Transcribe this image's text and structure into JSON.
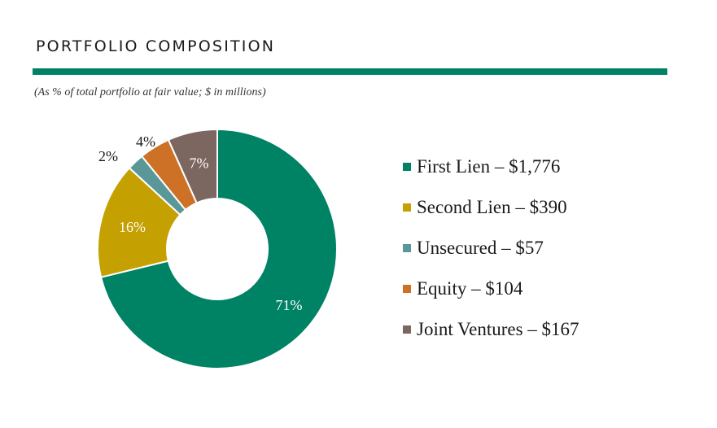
{
  "header": {
    "title": "PORTFOLIO COMPOSITION",
    "subtitle": "(As % of total portfolio at fair value; $ in millions)",
    "rule_color": "#008264"
  },
  "chart_data": {
    "type": "pie",
    "style": "donut",
    "legend_position": "right",
    "series": [
      {
        "name": "First Lien – $1,776",
        "value": 1776,
        "percent_label": "71%",
        "color": "#008264",
        "label_color": "#ffffff",
        "label_position": "inside"
      },
      {
        "name": "Second Lien – $390",
        "value": 390,
        "percent_label": "16%",
        "color": "#c4a000",
        "label_color": "#ffffff",
        "label_position": "inside"
      },
      {
        "name": "Unsecured – $57",
        "value": 57,
        "percent_label": "2%",
        "color": "#5a9799",
        "label_color": "#1a1a1a",
        "label_position": "outside"
      },
      {
        "name": "Equity – $104",
        "value": 104,
        "percent_label": "4%",
        "color": "#cc7126",
        "label_color": "#1a1a1a",
        "label_position": "outside"
      },
      {
        "name": "Joint Ventures – $167",
        "value": 167,
        "percent_label": "7%",
        "color": "#7b6760",
        "label_color": "#ffffff",
        "label_position": "inside"
      }
    ]
  }
}
